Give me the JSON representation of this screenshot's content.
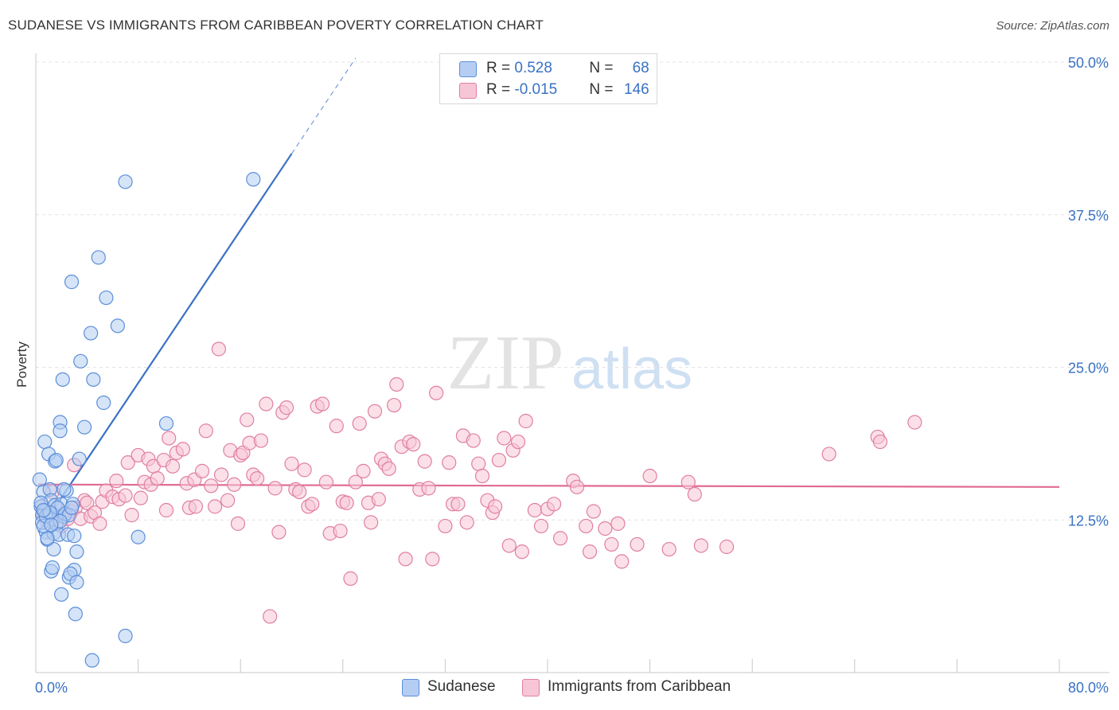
{
  "title": "SUDANESE VS IMMIGRANTS FROM CARIBBEAN POVERTY CORRELATION CHART",
  "source": "Source: ZipAtlas.com",
  "watermark": {
    "zip": "ZIP",
    "atlas": "atlas"
  },
  "legend": {
    "rows": [
      {
        "r_label": "R = ",
        "r_value": "0.528",
        "n_label": "N = ",
        "n_value": "68"
      },
      {
        "r_label": "R = ",
        "r_value": "-0.015",
        "n_label": "N = ",
        "n_value": "146"
      }
    ]
  },
  "colors": {
    "blue_fill": "#b5cdf2",
    "blue_stroke": "#5b8fd9",
    "blue_line": "#3a72c4",
    "pink_fill": "#f7c6d6",
    "pink_stroke": "#e07fa3",
    "pink_line": "#e06a95",
    "axis_label": "#3a72c4",
    "grid": "#e4e4e4"
  },
  "chart_data": {
    "type": "scatter",
    "title": "SUDANESE VS IMMIGRANTS FROM CARIBBEAN POVERTY CORRELATION CHART",
    "xlabel": "",
    "ylabel": "Poverty",
    "xlim": [
      0,
      80
    ],
    "ylim": [
      0,
      50
    ],
    "x_tick_labels": [
      "0.0%",
      "80.0%"
    ],
    "y_ticks": [
      12.5,
      25.0,
      37.5,
      50.0
    ],
    "y_tick_labels": [
      "12.5%",
      "25.0%",
      "37.5%",
      "50.0%"
    ],
    "grid": true,
    "series": [
      {
        "name": "Sudanese",
        "r": 0.528,
        "n": 68,
        "trend": {
          "x0": 0.2,
          "y0": 11.5,
          "x1": 20.0,
          "y1": 42.5,
          "dash_to_x": 25.0
        },
        "points": [
          [
            0.3,
            15.8
          ],
          [
            0.4,
            13.6
          ],
          [
            0.5,
            12.9
          ],
          [
            0.6,
            14.8
          ],
          [
            0.7,
            13.2
          ],
          [
            0.8,
            11.5
          ],
          [
            0.5,
            12.3
          ],
          [
            0.9,
            10.9
          ],
          [
            1.0,
            13.0
          ],
          [
            1.1,
            15.0
          ],
          [
            1.2,
            14.1
          ],
          [
            1.3,
            12.6
          ],
          [
            1.4,
            11.4
          ],
          [
            1.5,
            13.7
          ],
          [
            1.6,
            12.2
          ],
          [
            1.8,
            11.3
          ],
          [
            2.0,
            13.8
          ],
          [
            2.2,
            12.8
          ],
          [
            2.4,
            14.9
          ],
          [
            0.7,
            18.9
          ],
          [
            1.0,
            17.9
          ],
          [
            1.5,
            17.3
          ],
          [
            1.6,
            17.4
          ],
          [
            1.9,
            20.5
          ],
          [
            1.9,
            19.8
          ],
          [
            2.1,
            24.0
          ],
          [
            2.2,
            15.0
          ],
          [
            2.5,
            11.3
          ],
          [
            2.6,
            7.8
          ],
          [
            2.9,
            13.8
          ],
          [
            2.8,
            32.0
          ],
          [
            3.0,
            11.2
          ],
          [
            3.2,
            9.9
          ],
          [
            3.4,
            17.5
          ],
          [
            3.5,
            25.5
          ],
          [
            3.8,
            20.1
          ],
          [
            4.3,
            27.8
          ],
          [
            4.9,
            34.0
          ],
          [
            5.3,
            22.1
          ],
          [
            5.5,
            30.7
          ],
          [
            6.4,
            28.4
          ],
          [
            7.0,
            40.2
          ],
          [
            7.0,
            3.0
          ],
          [
            8.0,
            11.1
          ],
          [
            10.2,
            20.4
          ],
          [
            17.0,
            40.4
          ],
          [
            4.5,
            24.0
          ],
          [
            1.2,
            8.3
          ],
          [
            1.3,
            8.6
          ],
          [
            3.0,
            8.4
          ],
          [
            2.7,
            8.1
          ],
          [
            3.2,
            7.4
          ],
          [
            2.0,
            6.4
          ],
          [
            3.1,
            4.8
          ],
          [
            4.4,
            1.0
          ],
          [
            1.4,
            10.1
          ],
          [
            0.9,
            11.0
          ],
          [
            1.7,
            13.5
          ],
          [
            2.3,
            13.0
          ],
          [
            0.6,
            12.0
          ],
          [
            0.8,
            12.8
          ],
          [
            1.1,
            13.1
          ],
          [
            2.6,
            12.9
          ],
          [
            1.9,
            12.4
          ],
          [
            0.4,
            13.9
          ],
          [
            2.8,
            13.5
          ],
          [
            1.2,
            12.1
          ],
          [
            0.6,
            13.3
          ]
        ]
      },
      {
        "name": "Immigrants from Caribbean",
        "r": -0.015,
        "n": 146,
        "trend": {
          "x0": 0.2,
          "y0": 15.4,
          "x1": 80.0,
          "y1": 15.2
        },
        "points": [
          [
            0.5,
            13.6
          ],
          [
            0.6,
            12.9
          ],
          [
            0.8,
            12.5
          ],
          [
            1.0,
            13.2
          ],
          [
            1.1,
            12.4
          ],
          [
            1.3,
            14.8
          ],
          [
            1.5,
            12.6
          ],
          [
            1.7,
            13.4
          ],
          [
            2.0,
            12.0
          ],
          [
            2.2,
            13.0
          ],
          [
            2.5,
            12.6
          ],
          [
            2.8,
            13.2
          ],
          [
            3.0,
            17.0
          ],
          [
            3.1,
            13.5
          ],
          [
            3.5,
            12.6
          ],
          [
            3.8,
            14.1
          ],
          [
            4.0,
            13.9
          ],
          [
            4.3,
            12.8
          ],
          [
            4.6,
            13.1
          ],
          [
            5.0,
            12.2
          ],
          [
            5.2,
            14.0
          ],
          [
            5.5,
            14.9
          ],
          [
            6.0,
            14.4
          ],
          [
            6.3,
            15.7
          ],
          [
            6.5,
            14.2
          ],
          [
            7.0,
            14.5
          ],
          [
            7.2,
            17.2
          ],
          [
            7.5,
            12.9
          ],
          [
            8.0,
            17.8
          ],
          [
            8.2,
            14.3
          ],
          [
            8.5,
            15.6
          ],
          [
            8.8,
            17.5
          ],
          [
            9.0,
            15.4
          ],
          [
            9.2,
            16.9
          ],
          [
            9.5,
            15.9
          ],
          [
            10.0,
            17.4
          ],
          [
            10.2,
            13.3
          ],
          [
            10.4,
            19.2
          ],
          [
            10.7,
            16.9
          ],
          [
            11.0,
            18.0
          ],
          [
            11.5,
            18.3
          ],
          [
            11.8,
            15.5
          ],
          [
            12.0,
            13.5
          ],
          [
            12.4,
            15.8
          ],
          [
            12.5,
            13.6
          ],
          [
            13.0,
            16.5
          ],
          [
            13.3,
            19.8
          ],
          [
            13.7,
            15.3
          ],
          [
            14.0,
            13.6
          ],
          [
            14.3,
            26.5
          ],
          [
            14.5,
            16.2
          ],
          [
            15.0,
            14.1
          ],
          [
            15.2,
            18.2
          ],
          [
            15.5,
            15.4
          ],
          [
            15.8,
            12.2
          ],
          [
            16.0,
            17.8
          ],
          [
            16.2,
            18.0
          ],
          [
            16.5,
            20.7
          ],
          [
            16.7,
            18.8
          ],
          [
            17.0,
            16.2
          ],
          [
            17.3,
            15.9
          ],
          [
            17.6,
            19.0
          ],
          [
            18.0,
            22.0
          ],
          [
            18.3,
            4.6
          ],
          [
            18.7,
            15.1
          ],
          [
            19.0,
            11.5
          ],
          [
            19.3,
            21.3
          ],
          [
            19.6,
            21.7
          ],
          [
            20.0,
            17.1
          ],
          [
            20.3,
            15.0
          ],
          [
            20.6,
            14.8
          ],
          [
            21.0,
            16.6
          ],
          [
            21.3,
            13.6
          ],
          [
            21.6,
            13.8
          ],
          [
            22.0,
            21.8
          ],
          [
            22.4,
            22.0
          ],
          [
            22.7,
            15.6
          ],
          [
            23.0,
            11.4
          ],
          [
            23.5,
            20.2
          ],
          [
            23.8,
            11.6
          ],
          [
            24.0,
            14.0
          ],
          [
            24.3,
            13.9
          ],
          [
            24.6,
            7.7
          ],
          [
            25.0,
            15.6
          ],
          [
            25.3,
            20.4
          ],
          [
            25.6,
            16.5
          ],
          [
            26.0,
            13.9
          ],
          [
            26.2,
            12.3
          ],
          [
            26.5,
            21.4
          ],
          [
            26.8,
            14.2
          ],
          [
            27.0,
            17.5
          ],
          [
            27.3,
            17.1
          ],
          [
            27.6,
            16.7
          ],
          [
            28.0,
            21.9
          ],
          [
            28.2,
            23.6
          ],
          [
            28.6,
            18.5
          ],
          [
            28.9,
            9.3
          ],
          [
            29.2,
            18.9
          ],
          [
            29.5,
            18.7
          ],
          [
            30.0,
            15.0
          ],
          [
            30.4,
            17.3
          ],
          [
            30.7,
            15.1
          ],
          [
            31.0,
            9.3
          ],
          [
            31.3,
            22.9
          ],
          [
            32.0,
            12.0
          ],
          [
            32.3,
            17.2
          ],
          [
            32.6,
            13.8
          ],
          [
            33.0,
            13.8
          ],
          [
            33.4,
            19.4
          ],
          [
            33.7,
            12.3
          ],
          [
            34.2,
            19.0
          ],
          [
            34.6,
            17.1
          ],
          [
            34.9,
            16.1
          ],
          [
            35.3,
            14.1
          ],
          [
            35.7,
            13.1
          ],
          [
            35.9,
            13.6
          ],
          [
            36.2,
            17.4
          ],
          [
            36.6,
            19.2
          ],
          [
            37.0,
            10.4
          ],
          [
            37.3,
            18.2
          ],
          [
            37.7,
            18.9
          ],
          [
            38.0,
            9.9
          ],
          [
            38.3,
            20.6
          ],
          [
            39.0,
            13.3
          ],
          [
            39.5,
            12.0
          ],
          [
            40.0,
            13.4
          ],
          [
            40.5,
            13.8
          ],
          [
            41.0,
            11.0
          ],
          [
            42.0,
            15.7
          ],
          [
            42.3,
            15.2
          ],
          [
            43.0,
            12.0
          ],
          [
            43.3,
            9.9
          ],
          [
            43.6,
            13.2
          ],
          [
            44.5,
            11.8
          ],
          [
            45.0,
            10.5
          ],
          [
            45.5,
            12.2
          ],
          [
            45.8,
            9.1
          ],
          [
            47.0,
            10.5
          ],
          [
            48.0,
            16.1
          ],
          [
            49.5,
            10.1
          ],
          [
            51.0,
            15.6
          ],
          [
            51.5,
            14.6
          ],
          [
            52.0,
            10.4
          ],
          [
            54.0,
            10.3
          ],
          [
            62.0,
            17.9
          ],
          [
            65.8,
            19.3
          ],
          [
            66.0,
            18.9
          ],
          [
            68.7,
            20.5
          ]
        ]
      }
    ]
  },
  "bottom_legend": [
    {
      "label": "Sudanese"
    },
    {
      "label": "Immigrants from Caribbean"
    }
  ]
}
